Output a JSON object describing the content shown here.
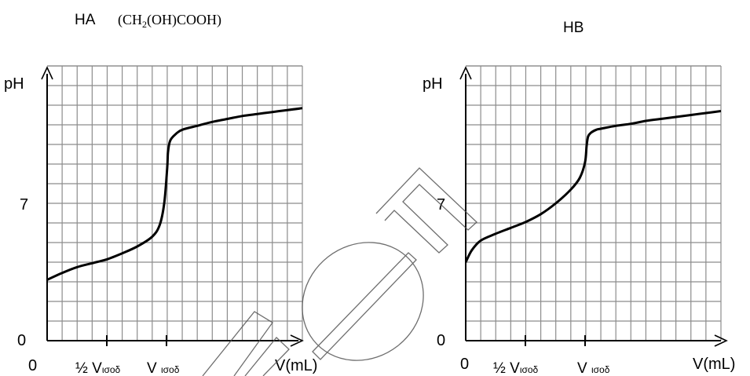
{
  "charts": [
    {
      "title_main": "HA",
      "title_formula": {
        "parts": [
          {
            "text": "(CH",
            "sub": false
          },
          {
            "text": "2",
            "sub": true
          },
          {
            "text": "(OH)COOH)",
            "sub": false
          }
        ]
      },
      "ylabel": "pH",
      "xlabel": "V(mL)",
      "origin_x": "0",
      "y_tick_labels": [
        {
          "value": 0,
          "label": "0"
        },
        {
          "value": 7,
          "label": "7"
        }
      ],
      "x_marks": [
        {
          "label": "½ V",
          "sub": "ισοδ",
          "x": 4
        },
        {
          "label": "V ",
          "sub": "ισοδ",
          "x": 8
        }
      ]
    },
    {
      "title_main": "HB",
      "ylabel": "pH",
      "xlabel": "V(mL)",
      "origin_x": "0",
      "y_tick_labels": [
        {
          "value": 0,
          "label": "0"
        },
        {
          "value": 7,
          "label": "7"
        }
      ],
      "x_marks": [
        {
          "label": "½ V",
          "sub": "ισοδ",
          "x": 4
        },
        {
          "label": "V ",
          "sub": "ισοδ",
          "x": 8
        }
      ]
    }
  ],
  "chart_data": [
    {
      "type": "line",
      "title": "HA (CH2(OH)COOH)",
      "xlabel": "V(mL)",
      "ylabel": "pH",
      "xlim": [
        0,
        17
      ],
      "ylim": [
        0,
        14
      ],
      "grid": true,
      "x": [
        0,
        1,
        2,
        3,
        4,
        5,
        6,
        7,
        7.5,
        7.8,
        8.0,
        8.05,
        8.2,
        8.6,
        9,
        10,
        11,
        12,
        13,
        14,
        15,
        16,
        17
      ],
      "y": [
        3.1,
        3.45,
        3.75,
        3.95,
        4.15,
        4.45,
        4.8,
        5.3,
        5.9,
        7.0,
        8.8,
        9.6,
        10.2,
        10.55,
        10.75,
        10.95,
        11.15,
        11.3,
        11.45,
        11.55,
        11.65,
        11.75,
        11.85
      ]
    },
    {
      "type": "line",
      "title": "HB",
      "xlabel": "V(mL)",
      "ylabel": "pH",
      "xlim": [
        0,
        17
      ],
      "ylim": [
        0,
        14
      ],
      "grid": true,
      "x": [
        0,
        0.4,
        1,
        2,
        3,
        4,
        5,
        6,
        7,
        7.6,
        7.95,
        8.05,
        8.15,
        8.35,
        8.7,
        9,
        10,
        11,
        12,
        13,
        14,
        15,
        16,
        17
      ],
      "y": [
        4.0,
        4.6,
        5.1,
        5.45,
        5.75,
        6.05,
        6.45,
        7.0,
        7.7,
        8.3,
        9.1,
        9.9,
        10.4,
        10.6,
        10.75,
        10.8,
        10.95,
        11.05,
        11.2,
        11.3,
        11.4,
        11.5,
        11.6,
        11.7
      ]
    }
  ]
}
